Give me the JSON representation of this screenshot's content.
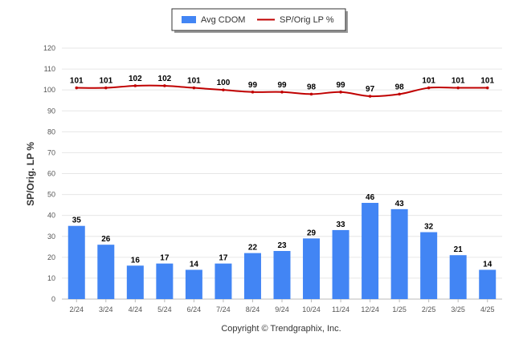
{
  "chart_data": {
    "type": "bar",
    "title": "",
    "xlabel": "",
    "ylabel": "SP/Orig. LP %",
    "ylim": [
      0,
      120
    ],
    "yticks": [
      0,
      10,
      20,
      30,
      40,
      50,
      60,
      70,
      80,
      90,
      100,
      110,
      120
    ],
    "grid": true,
    "legend_position": "top-center",
    "categories": [
      "2/24",
      "3/24",
      "4/24",
      "5/24",
      "6/24",
      "7/24",
      "8/24",
      "9/24",
      "10/24",
      "11/24",
      "12/24",
      "1/25",
      "2/25",
      "3/25",
      "4/25"
    ],
    "series": [
      {
        "name": "Avg CDOM",
        "type": "bar",
        "color": "#4285f4",
        "values": [
          35,
          26,
          16,
          17,
          14,
          17,
          22,
          23,
          29,
          33,
          46,
          43,
          32,
          21,
          14
        ]
      },
      {
        "name": "SP/Orig LP %",
        "type": "line",
        "color": "#c00000",
        "values": [
          101,
          101,
          102,
          102,
          101,
          100,
          99,
          99,
          98,
          99,
          97,
          98,
          101,
          101,
          101
        ]
      }
    ]
  },
  "footer": {
    "copyright": "Copyright © Trendgraphix, Inc."
  }
}
